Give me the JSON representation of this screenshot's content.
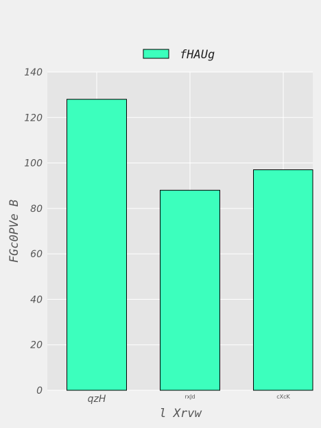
{
  "chart_data": {
    "type": "bar",
    "categories": [
      "qzH",
      "rxJd",
      "cXcK"
    ],
    "series": [
      {
        "name": "fHAUg",
        "values": [
          128,
          88,
          97
        ]
      }
    ],
    "title": "",
    "xlabel": "l Xrvw",
    "ylabel": "FGc0PVe B",
    "ylim": [
      0,
      140
    ],
    "yticks": [
      0,
      20,
      40,
      60,
      80,
      100,
      120,
      140
    ],
    "grid": true,
    "legend": "top-center",
    "colors": {
      "bar_fill": "#3cffbd",
      "bar_edge": "#000000",
      "plot_background": "#e5e5e5",
      "figure_background": "#f0f0f0",
      "grid": "#ffffff"
    }
  }
}
